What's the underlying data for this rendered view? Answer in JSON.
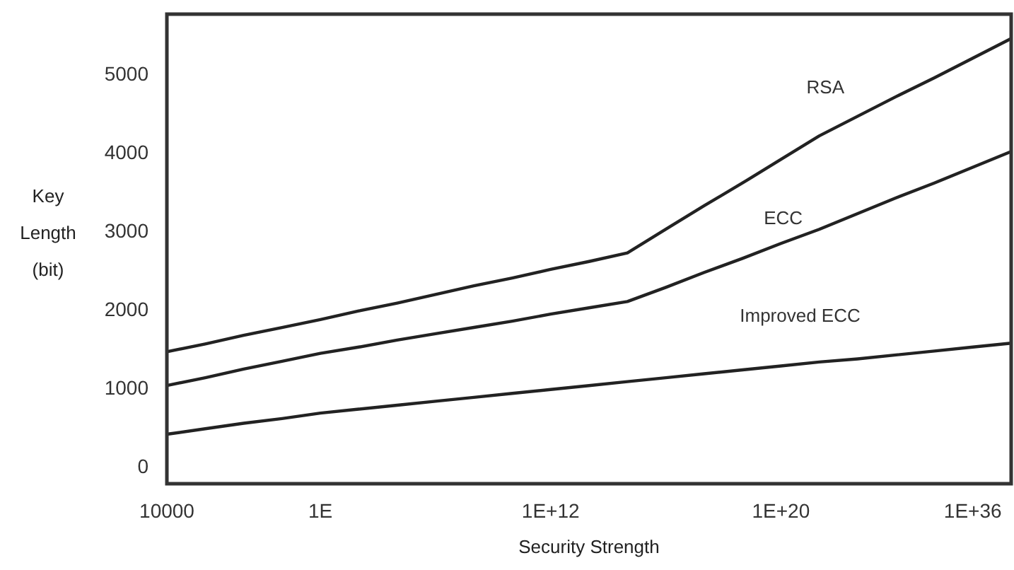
{
  "chart_data": {
    "type": "line",
    "xlabel": "Security Strength",
    "ylabel": "Key Length (bit)",
    "categories": [
      "10000",
      null,
      null,
      null,
      "1E",
      null,
      null,
      null,
      null,
      null,
      "1E+12",
      null,
      null,
      null,
      null,
      null,
      "1E+20",
      null,
      null,
      null,
      null,
      "1E+36",
      null
    ],
    "ylim": [
      -220,
      5760
    ],
    "yticks": [
      0,
      1000,
      2000,
      3000,
      4000,
      5000
    ],
    "grid": false,
    "legend": false,
    "marker": "none",
    "line_style": "solid",
    "series": [
      {
        "name": "RSA",
        "color": "#222222",
        "values": [
          1460,
          1560,
          1670,
          1770,
          1870,
          1980,
          2080,
          2190,
          2300,
          2400,
          2510,
          2610,
          2720,
          3020,
          3320,
          3610,
          3910,
          4210,
          4460,
          4710,
          4950,
          5200,
          5450
        ]
      },
      {
        "name": "ECC",
        "color": "#222222",
        "values": [
          1030,
          1130,
          1240,
          1340,
          1440,
          1520,
          1610,
          1690,
          1770,
          1850,
          1940,
          2020,
          2100,
          2280,
          2470,
          2650,
          2840,
          3020,
          3220,
          3420,
          3610,
          3810,
          4010
        ]
      },
      {
        "name": "Improved ECC",
        "color": "#222222",
        "values": [
          410,
          480,
          550,
          610,
          680,
          730,
          780,
          830,
          880,
          930,
          980,
          1030,
          1080,
          1130,
          1180,
          1230,
          1280,
          1330,
          1370,
          1420,
          1470,
          1520,
          1570
        ]
      }
    ]
  }
}
